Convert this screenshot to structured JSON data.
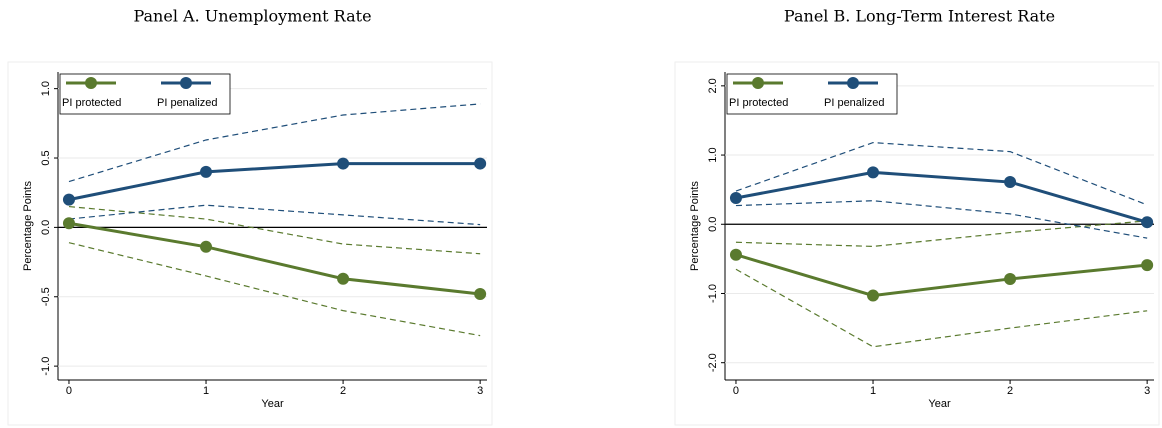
{
  "chart_data": [
    {
      "type": "line",
      "title": "Panel A. Unemployment Rate",
      "xlabel": "Year",
      "ylabel": "Percentage Points",
      "x": [
        0,
        1,
        2,
        3
      ],
      "xlim": [
        -0.08,
        3.05
      ],
      "xticks": [
        0,
        1,
        2,
        3
      ],
      "ylim": [
        -1.1,
        1.12
      ],
      "yticks": [
        {
          "value": -1,
          "label": "-1.0"
        },
        {
          "value": -0.5,
          "label": "-0.5"
        },
        {
          "value": 0,
          "label": "0.0"
        },
        {
          "value": 0.5,
          "label": "0.5"
        },
        {
          "value": 1,
          "label": "1.0"
        }
      ],
      "hline": 0,
      "legend": "upper left",
      "series": [
        {
          "name": "PI protected",
          "color": "#5a7a2e",
          "values": [
            0.03,
            -0.14,
            -0.37,
            -0.48
          ],
          "upper": [
            0.15,
            0.06,
            -0.12,
            -0.19
          ],
          "lower": [
            -0.11,
            -0.35,
            -0.6,
            -0.78
          ]
        },
        {
          "name": "PI penalized",
          "color": "#1f4e79",
          "values": [
            0.2,
            0.4,
            0.46,
            0.46
          ],
          "upper": [
            0.33,
            0.63,
            0.81,
            0.89
          ],
          "lower": [
            0.06,
            0.16,
            0.09,
            0.02
          ]
        }
      ]
    },
    {
      "type": "line",
      "title": "Panel B. Long-Term Interest Rate",
      "xlabel": "Year",
      "ylabel": "Percentage Points",
      "x": [
        0,
        1,
        2,
        3
      ],
      "xlim": [
        -0.08,
        3.05
      ],
      "xticks": [
        0,
        1,
        2,
        3
      ],
      "ylim": [
        -2.25,
        2.2
      ],
      "yticks": [
        {
          "value": -2,
          "label": "-2.0"
        },
        {
          "value": -1,
          "label": "-1.0"
        },
        {
          "value": 0,
          "label": "0.0"
        },
        {
          "value": 1,
          "label": "1.0"
        },
        {
          "value": 2,
          "label": "2.0"
        }
      ],
      "hline": 0,
      "legend": "upper left",
      "series": [
        {
          "name": "PI protected",
          "color": "#5a7a2e",
          "values": [
            -0.44,
            -1.03,
            -0.79,
            -0.59
          ],
          "upper": [
            -0.26,
            -0.32,
            -0.12,
            0.05
          ],
          "lower": [
            -0.65,
            -1.77,
            -1.5,
            -1.25
          ]
        },
        {
          "name": "PI penalized",
          "color": "#1f4e79",
          "values": [
            0.38,
            0.75,
            0.61,
            0.03
          ],
          "upper": [
            0.48,
            1.18,
            1.05,
            0.28
          ],
          "lower": [
            0.27,
            0.34,
            0.15,
            -0.2
          ]
        }
      ]
    }
  ]
}
